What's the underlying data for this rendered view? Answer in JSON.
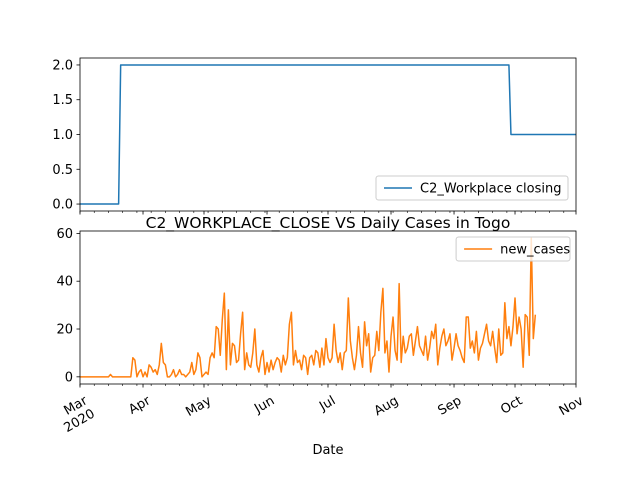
{
  "title": "C2_WORKPLACE_CLOSE VS Daily Cases in Togo",
  "chart_data": [
    {
      "type": "line",
      "panel": "top",
      "series": [
        {
          "name": "C2_Workplace closing",
          "color": "#1f77b4",
          "steps": [
            {
              "x": "2020-03-01",
              "y": 0
            },
            {
              "x": "2020-03-20",
              "y": 0
            },
            {
              "x": "2020-03-21",
              "y": 2
            },
            {
              "x": "2020-09-28",
              "y": 2
            },
            {
              "x": "2020-09-29",
              "y": 1
            },
            {
              "x": "2020-10-31",
              "y": 1
            }
          ]
        }
      ],
      "xlim": [
        "2020-03-01",
        "2020-10-31"
      ],
      "ylim": [
        -0.1,
        2.1
      ],
      "yticks": [
        0.0,
        0.5,
        1.0,
        1.5,
        2.0
      ],
      "ytick_labels": [
        "0.0",
        "0.5",
        "1.0",
        "1.5",
        "2.0"
      ],
      "legend_position": "lower right",
      "grid": false
    },
    {
      "type": "line",
      "panel": "bottom",
      "series": [
        {
          "name": "new_cases",
          "color": "#ff7f0e",
          "start_date": "2020-03-01",
          "values": [
            0,
            0,
            0,
            0,
            0,
            0,
            0,
            0,
            0,
            0,
            0,
            0,
            0,
            0,
            0,
            1,
            0,
            0,
            0,
            0,
            0,
            0,
            0,
            0,
            0,
            0,
            8,
            7,
            0,
            2,
            3,
            0,
            2,
            0,
            5,
            4,
            2,
            3,
            1,
            5,
            14,
            6,
            5,
            0,
            0,
            1,
            3,
            0,
            1,
            3,
            1,
            1,
            0,
            1,
            2,
            6,
            1,
            3,
            10,
            8,
            0,
            1,
            2,
            1,
            8,
            10,
            8,
            21,
            20,
            9,
            24,
            35,
            3,
            28,
            5,
            14,
            13,
            6,
            7,
            18,
            27,
            3,
            10,
            5,
            4,
            10,
            20,
            5,
            2,
            8,
            11,
            1,
            6,
            2,
            7,
            3,
            6,
            8,
            7,
            2,
            9,
            5,
            8,
            22,
            27,
            5,
            11,
            6,
            7,
            3,
            9,
            8,
            1,
            8,
            9,
            5,
            11,
            10,
            4,
            12,
            5,
            16,
            8,
            6,
            8,
            22,
            11,
            6,
            10,
            3,
            10,
            11,
            33,
            15,
            8,
            3,
            9,
            21,
            10,
            4,
            23,
            13,
            18,
            2,
            8,
            9,
            19,
            11,
            27,
            37,
            10,
            15,
            2,
            17,
            25,
            11,
            7,
            39,
            6,
            17,
            10,
            12,
            17,
            18,
            9,
            15,
            21,
            13,
            11,
            9,
            17,
            7,
            12,
            19,
            16,
            22,
            5,
            12,
            17,
            20,
            13,
            15,
            18,
            7,
            12,
            18,
            13,
            11,
            8,
            6,
            25,
            25,
            12,
            15,
            10,
            19,
            7,
            12,
            14,
            18,
            22,
            15,
            13,
            19,
            12,
            6,
            20,
            9,
            10,
            31,
            16,
            21,
            13,
            21,
            33,
            18,
            25,
            20,
            4,
            26,
            25,
            9,
            58,
            16,
            26
          ]
        }
      ],
      "xlim": [
        "2020-03-01",
        "2020-10-31"
      ],
      "ylim": [
        -3,
        61
      ],
      "yticks": [
        0,
        20,
        40,
        60
      ],
      "ytick_labels": [
        "0",
        "20",
        "40",
        "60"
      ],
      "xticks": [
        "2020-03-01",
        "2020-04-01",
        "2020-05-01",
        "2020-06-01",
        "2020-07-01",
        "2020-08-01",
        "2020-09-01",
        "2020-10-01",
        "2020-11-01"
      ],
      "xtick_labels": [
        "Mar\n2020",
        "Apr",
        "May",
        "Jun",
        "Jul",
        "Aug",
        "Sep",
        "Oct",
        "Nov"
      ],
      "xlabel": "Date",
      "legend_position": "upper right",
      "grid": false
    }
  ]
}
